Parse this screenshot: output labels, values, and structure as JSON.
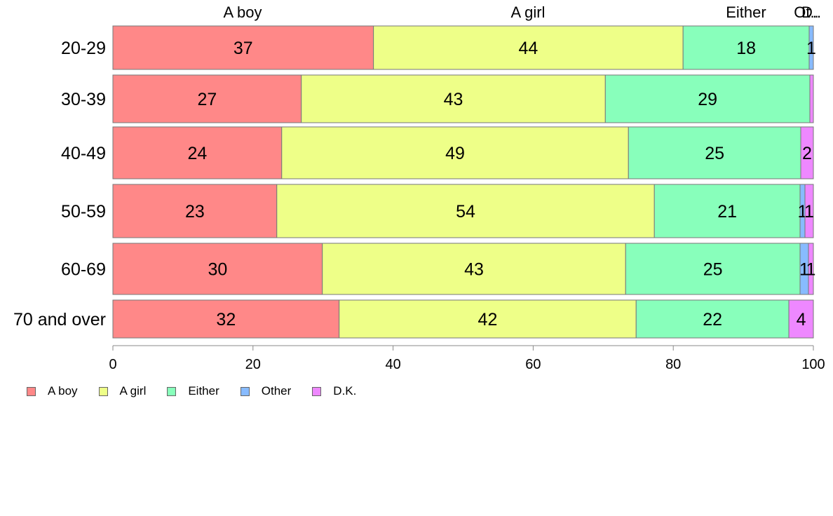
{
  "chart_data": {
    "type": "bar",
    "orientation": "horizontal",
    "stacked": true,
    "categories": [
      "20-29",
      "30-39",
      "40-49",
      "50-59",
      "60-69",
      "70 and over"
    ],
    "series": [
      {
        "name": "A boy",
        "color": "#FF8888",
        "values": [
          37.2,
          26.9,
          24.1,
          23.4,
          29.9,
          32.3
        ]
      },
      {
        "name": "A girl",
        "color": "#EEFF88",
        "values": [
          44.2,
          43.4,
          49.5,
          53.9,
          43.3,
          42.4
        ]
      },
      {
        "name": "Either",
        "color": "#88FFBB",
        "values": [
          18.0,
          29.2,
          24.6,
          20.8,
          24.9,
          21.8
        ]
      },
      {
        "name": "Other",
        "color": "#88BBFF",
        "values": [
          0.6,
          0.0,
          0.0,
          0.7,
          1.2,
          0.0
        ]
      },
      {
        "name": "D.K.",
        "color": "#EE88FF",
        "values": [
          0.0,
          0.5,
          1.8,
          1.2,
          0.7,
          3.5
        ]
      }
    ],
    "data_labels": [
      [
        "37",
        "44",
        "18",
        "1",
        ""
      ],
      [
        "27",
        "43",
        "29",
        "",
        ""
      ],
      [
        "24",
        "49",
        "25",
        "",
        "2"
      ],
      [
        "23",
        "54",
        "21",
        "1",
        "1"
      ],
      [
        "30",
        "43",
        "25",
        "1",
        "1"
      ],
      [
        "32",
        "42",
        "22",
        "",
        "4"
      ]
    ],
    "top_labels": [
      "A boy",
      "A girl",
      "Either",
      "Ot..",
      "D.."
    ],
    "xlim": [
      0,
      100
    ],
    "xticks": [
      "0",
      "20",
      "40",
      "60",
      "80",
      "100"
    ],
    "grid": false,
    "legend_position": "bottom-left"
  }
}
